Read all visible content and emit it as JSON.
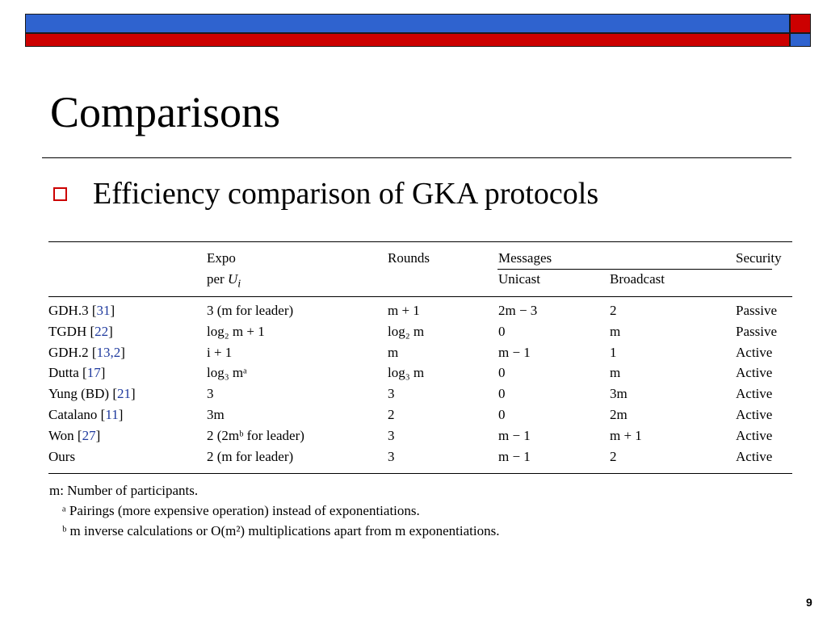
{
  "slide": {
    "title": "Comparisons",
    "bullet": "Efficiency comparison of GKA protocols",
    "page_number": "9"
  },
  "table": {
    "header": {
      "expo": "Expo",
      "expo_sub_prefix": "per ",
      "expo_sub_var": "U",
      "expo_sub_index": "i",
      "rounds": "Rounds",
      "messages": "Messages",
      "unicast": "Unicast",
      "broadcast": "Broadcast",
      "security": "Security"
    },
    "rows": [
      {
        "protocol": "GDH.3 [",
        "refs": "31",
        "close": "]",
        "expo": "3 (m for leader)",
        "rounds": "m + 1",
        "unicast": "2m − 3",
        "broadcast": "2",
        "security": "Passive"
      },
      {
        "protocol": "TGDH [",
        "refs": "22",
        "close": "]",
        "expo": "log₂ m + 1",
        "rounds": "log₂ m",
        "unicast": "0",
        "broadcast": "m",
        "security": "Passive"
      },
      {
        "protocol": "GDH.2 [",
        "refs": "13,2",
        "close": "]",
        "expo": "i + 1",
        "rounds": "m",
        "unicast": "m − 1",
        "broadcast": "1",
        "security": "Active"
      },
      {
        "protocol": "Dutta [",
        "refs": "17",
        "close": "]",
        "expo": "log₃ mᵃ",
        "rounds": "log₃ m",
        "unicast": "0",
        "broadcast": "m",
        "security": "Active"
      },
      {
        "protocol": "Yung (BD) [",
        "refs": "21",
        "close": "]",
        "expo": "3",
        "rounds": "3",
        "unicast": "0",
        "broadcast": "3m",
        "security": "Active"
      },
      {
        "protocol": "Catalano [",
        "refs": "11",
        "close": "]",
        "expo": "3m",
        "rounds": "2",
        "unicast": "0",
        "broadcast": "2m",
        "security": "Active"
      },
      {
        "protocol": "Won [",
        "refs": "27",
        "close": "]",
        "expo": "2 (2mᵇ  for leader)",
        "rounds": "3",
        "unicast": "m − 1",
        "broadcast": "m + 1",
        "security": "Active"
      },
      {
        "protocol": "Ours",
        "refs": "",
        "close": "",
        "expo": "2 (m for leader)",
        "rounds": "3",
        "unicast": "m − 1",
        "broadcast": "2",
        "security": "Active"
      }
    ]
  },
  "footnotes": {
    "m": "m: Number of participants.",
    "a": "ᵃ Pairings (more expensive operation) instead of exponentiations.",
    "b": "ᵇ m inverse calculations or O(m²) multiplications apart from m exponentiations."
  }
}
